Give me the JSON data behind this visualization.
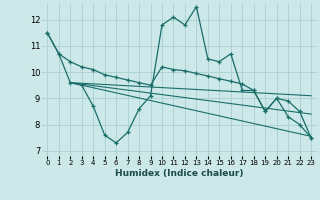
{
  "xlabel": "Humidex (Indice chaleur)",
  "bg_color": "#cce8e8",
  "grid_color": "#aad0d0",
  "line_color": "#1a6e6a",
  "xlim": [
    -0.5,
    23.5
  ],
  "ylim": [
    6.8,
    12.6
  ],
  "x_ticks": [
    0,
    1,
    2,
    3,
    4,
    5,
    6,
    7,
    8,
    9,
    10,
    11,
    12,
    13,
    14,
    15,
    16,
    17,
    18,
    19,
    20,
    21,
    22,
    23
  ],
  "y_ticks": [
    7,
    8,
    9,
    10,
    11,
    12
  ],
  "line1_x": [
    0,
    1,
    2,
    3,
    4,
    5,
    6,
    7,
    8,
    9,
    10,
    11,
    12,
    13,
    14,
    15,
    16,
    17,
    18,
    19,
    20,
    21,
    22,
    23
  ],
  "line1_y": [
    11.5,
    10.7,
    9.6,
    9.5,
    8.7,
    7.6,
    7.3,
    7.7,
    8.6,
    9.1,
    11.8,
    12.1,
    11.8,
    12.5,
    10.5,
    10.4,
    10.7,
    9.3,
    9.3,
    8.5,
    9.0,
    8.3,
    8.0,
    7.5
  ],
  "line2_x": [
    0,
    1,
    2,
    3,
    4,
    5,
    6,
    7,
    8,
    9,
    10,
    11,
    12,
    13,
    14,
    15,
    16,
    17,
    18,
    19,
    20,
    21,
    22,
    23
  ],
  "line2_y": [
    11.5,
    10.7,
    10.4,
    10.2,
    10.1,
    9.9,
    9.8,
    9.7,
    9.6,
    9.5,
    10.2,
    10.1,
    10.05,
    9.95,
    9.85,
    9.75,
    9.65,
    9.55,
    9.3,
    8.5,
    9.0,
    8.9,
    8.5,
    7.5
  ],
  "line3_x": [
    2,
    23
  ],
  "line3_y": [
    9.6,
    9.1
  ],
  "line4_x": [
    2,
    23
  ],
  "line4_y": [
    9.6,
    8.4
  ],
  "line5_x": [
    2,
    23
  ],
  "line5_y": [
    9.6,
    7.55
  ]
}
